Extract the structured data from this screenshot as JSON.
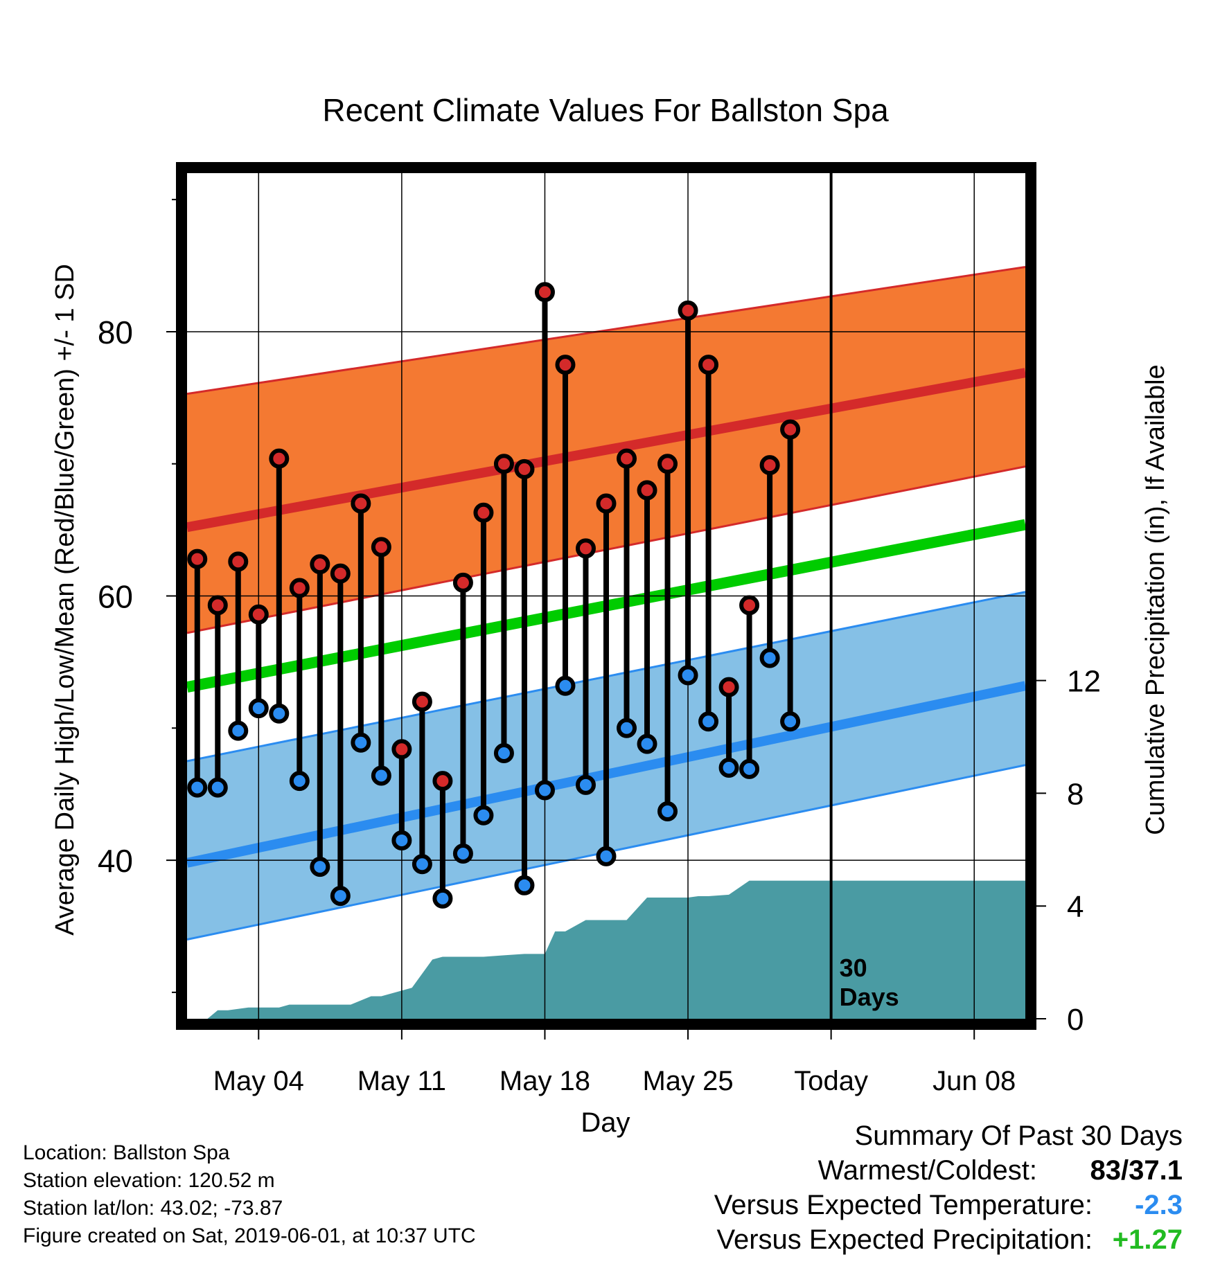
{
  "chart_data": {
    "type": "line",
    "title": "Recent Climate Values For Ballston Spa",
    "xlabel": "Day",
    "ylabel": "Average Daily High/Low/Mean (Red/Blue/Green) +/- 1 SD",
    "y2label": "Cumulative Precipitation (in), If Available",
    "ylim": [
      28,
      92
    ],
    "y2lim": [
      0,
      30
    ],
    "yticks": [
      40,
      60,
      80
    ],
    "y2ticks": [
      0,
      4,
      8,
      12
    ],
    "xlim": [
      0.5,
      41.5
    ],
    "xtick_positions": [
      4,
      11,
      18,
      25,
      32,
      39
    ],
    "xtick_labels": [
      "May 04",
      "May 11",
      "May 18",
      "May 25",
      "Today",
      "Jun 08"
    ],
    "today_index": 32,
    "today_annotation": [
      "30",
      "Days"
    ],
    "grid": true,
    "colors": {
      "high_band": "#f47932",
      "high_mean": "#d42a2a",
      "low_band": "#85c0e6",
      "low_mean": "#2b8cf0",
      "mean": "#00cc00",
      "precip": "#4a9ba3",
      "high_marker": "#d42a2a",
      "low_marker": "#2b8cf0"
    },
    "normals": {
      "day": [
        0.5,
        41.5
      ],
      "high_mean": [
        65.2,
        76.9
      ],
      "high_plus_sd": [
        75.3,
        84.9
      ],
      "high_minus_sd": [
        57.2,
        69.8
      ],
      "low_mean": [
        39.8,
        53.2
      ],
      "low_plus_sd": [
        47.5,
        60.3
      ],
      "low_minus_sd": [
        34.0,
        47.2
      ],
      "mean": [
        53.1,
        65.4
      ]
    },
    "series": [
      {
        "name": "High",
        "days": [
          1,
          2,
          3,
          4,
          5,
          6,
          7,
          8,
          9,
          10,
          11,
          12,
          13,
          14,
          15,
          16,
          17,
          18,
          19,
          20,
          21,
          22,
          23,
          24,
          25,
          26,
          27,
          28,
          29,
          30,
          31
        ],
        "values": [
          62.8,
          59.3,
          62.6,
          58.6,
          70.4,
          60.6,
          62.4,
          61.7,
          67.0,
          63.7,
          48.4,
          52.0,
          46.0,
          61.0,
          66.3,
          70.0,
          69.6,
          83.0,
          77.5,
          63.6,
          67.0,
          70.4,
          68.0,
          70.0,
          81.6,
          77.5,
          53.1,
          59.3,
          69.9,
          72.6,
          null
        ]
      },
      {
        "name": "Low",
        "days": [
          1,
          2,
          3,
          4,
          5,
          6,
          7,
          8,
          9,
          10,
          11,
          12,
          13,
          14,
          15,
          16,
          17,
          18,
          19,
          20,
          21,
          22,
          23,
          24,
          25,
          26,
          27,
          28,
          29,
          30,
          31
        ],
        "values": [
          45.5,
          45.5,
          49.8,
          51.5,
          51.1,
          46.0,
          39.5,
          37.3,
          48.9,
          46.4,
          41.5,
          39.7,
          37.1,
          40.5,
          43.4,
          48.1,
          38.1,
          45.3,
          53.2,
          45.7,
          40.3,
          50.0,
          48.8,
          43.7,
          54.0,
          50.5,
          47.0,
          46.9,
          55.3,
          50.5,
          null
        ]
      },
      {
        "name": "Precip",
        "x": [
          0.5,
          1.5,
          2.0,
          2.5,
          3.5,
          4.5,
          5.0,
          5.5,
          6.5,
          7.5,
          8.5,
          9.5,
          10.0,
          11.5,
          12.5,
          13.0,
          14.0,
          15.0,
          16.0,
          17.0,
          18.0,
          18.5,
          19.0,
          20.0,
          21.0,
          21.5,
          22.0,
          23.0,
          24.0,
          25.0,
          25.5,
          26.0,
          27.0,
          28.0,
          29.0,
          30.0,
          31.0,
          32.0,
          41.5
        ],
        "values": [
          0.0,
          0.0,
          0.3,
          0.3,
          0.4,
          0.4,
          0.4,
          0.5,
          0.5,
          0.5,
          0.5,
          0.8,
          0.8,
          1.1,
          2.1,
          2.2,
          2.2,
          2.2,
          2.25,
          2.3,
          2.3,
          3.1,
          3.1,
          3.5,
          3.5,
          3.5,
          3.5,
          4.3,
          4.3,
          4.3,
          4.35,
          4.35,
          4.4,
          4.9,
          4.9,
          4.9,
          4.9,
          4.9,
          4.9
        ]
      }
    ]
  },
  "info": {
    "location": "Location: Ballston Spa",
    "elevation": "Station elevation: 120.52 m",
    "latlon": "Station lat/lon: 43.02; -73.87",
    "created": "Figure created on Sat, 2019-06-01, at 10:37 UTC"
  },
  "summary": {
    "title": "Summary Of Past 30 Days",
    "warmest_label": "Warmest/Coldest:",
    "warmest_value": "83/37.1",
    "temp_label": "Versus Expected Temperature:",
    "temp_value": "-2.3",
    "temp_color": "#2b8cf0",
    "precip_label": "Versus Expected Precipitation:",
    "precip_value": "+1.27",
    "precip_color": "#22bb22"
  }
}
